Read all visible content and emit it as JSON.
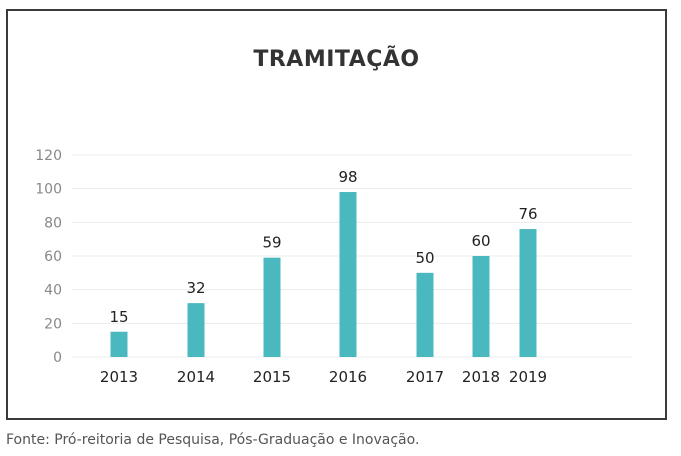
{
  "chart_data": {
    "type": "bar",
    "title": "TRAMITAÇÃO",
    "categories": [
      "2013",
      "2014",
      "2015",
      "2016",
      "2017",
      "2018",
      "2019"
    ],
    "values": [
      15,
      32,
      59,
      98,
      50,
      60,
      76
    ],
    "data_labels": [
      "15",
      "32",
      "59",
      "98",
      "50",
      "60",
      "76"
    ],
    "y_ticks": [
      "0",
      "20",
      "40",
      "60",
      "80",
      "100",
      "120"
    ],
    "ylim": [
      0,
      120
    ],
    "grid": true,
    "bar_color": "#4ab8bf"
  },
  "source_note": "Fonte: Pró-reitoria de Pesquisa, Pós-Graduação e Inovação."
}
